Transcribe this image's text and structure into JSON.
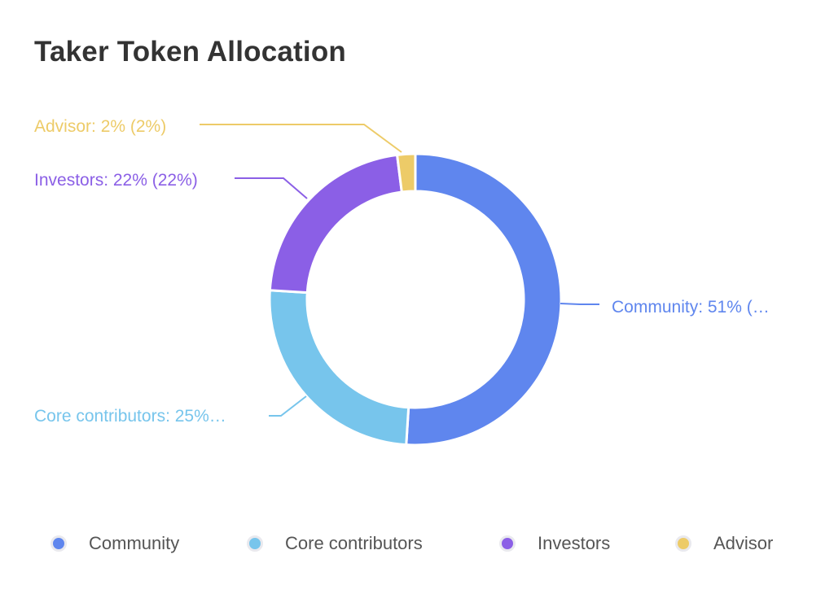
{
  "title": "Taker Token Allocation",
  "chart_data": {
    "type": "pie",
    "variant": "donut",
    "title": "Taker Token Allocation",
    "categories": [
      "Community",
      "Core contributors",
      "Investors",
      "Advisor"
    ],
    "values": [
      51,
      25,
      22,
      2
    ],
    "colors": [
      "#5F86EE",
      "#77C5EC",
      "#8B5FE6",
      "#EDCB68"
    ],
    "labels": [
      "Community: 51% (…",
      "Core contributors: 25%…",
      "Investors: 22% (22%)",
      "Advisor: 2% (2%)"
    ],
    "legend_position": "bottom"
  },
  "legend": {
    "items": [
      {
        "label": "Community",
        "color": "#5F86EE"
      },
      {
        "label": "Core contributors",
        "color": "#77C5EC"
      },
      {
        "label": "Investors",
        "color": "#8B5FE6"
      },
      {
        "label": "Advisor",
        "color": "#EDCB68"
      }
    ]
  }
}
